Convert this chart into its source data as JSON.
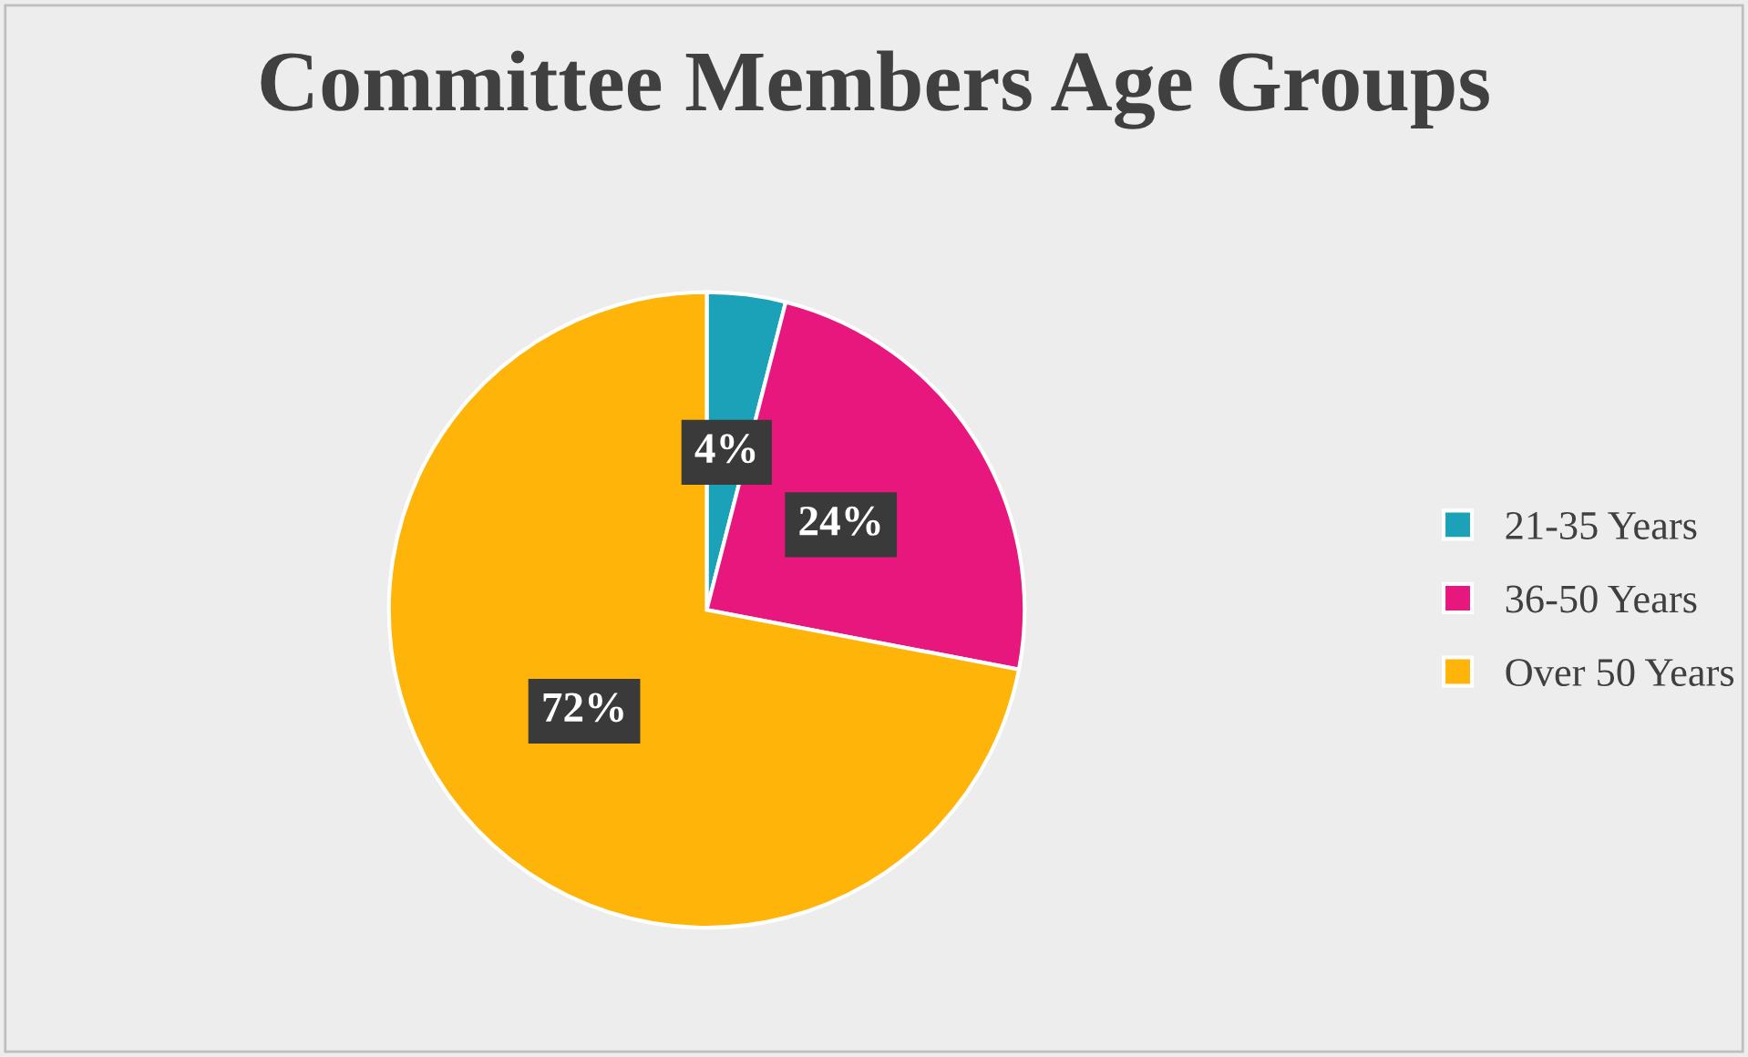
{
  "chart_data": {
    "type": "pie",
    "title": "Committee Members Age Groups",
    "categories": [
      "21-35 Years",
      "36-50 Years",
      "Over 50 Years"
    ],
    "values": [
      4,
      24,
      72
    ],
    "colors": [
      "#1ba1b8",
      "#e8177d",
      "#ffb40a"
    ],
    "value_labels": [
      "4%",
      "24%",
      "72%"
    ],
    "legend": "right"
  }
}
